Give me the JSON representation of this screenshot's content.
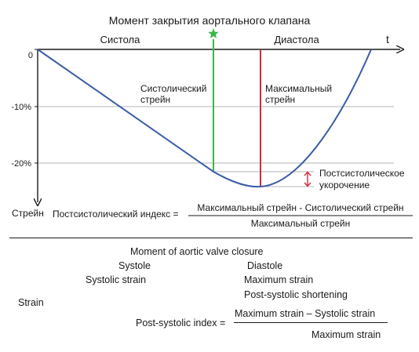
{
  "ru": {
    "title": "Момент закрытия аортального клапана",
    "systole": "Систола",
    "diastole": "Диастола",
    "t_label": "t",
    "y_axis_label": "Стрейн",
    "ticks": [
      "0",
      "-10%",
      "-20%"
    ],
    "systolic_strain": [
      "Систолический",
      "стрейн"
    ],
    "maximum_strain": [
      "Максимальный",
      "стрейн"
    ],
    "post_systolic_shortening": [
      "Постсистолическое",
      "укорочение"
    ],
    "index_label": "Постсистолический индекс =",
    "formula_numerator": "Максимальный стрейн - Систолический стрейн",
    "formula_denominator": "Максимальный стрейн"
  },
  "en": {
    "title": "Moment of aortic valve closure",
    "systole": "Systole",
    "diastole": "Diastole",
    "systolic_strain": "Systolic strain",
    "maximum_strain": "Maximum strain",
    "post_systolic_shortening": "Post-systolic shortening",
    "strain": "Strain",
    "index_label": "Post-systolic index =",
    "formula_numerator": "Maximum strain – Systolic strain",
    "formula_denominator": "Maximum strain"
  },
  "colors": {
    "curve": "#3b5ba8",
    "systolic_line": "#3cb54a",
    "maximum_line": "#d0293a",
    "shortening_arrow": "#d0293a",
    "star": "#3cb54a",
    "grid": "#b5b5b5"
  }
}
